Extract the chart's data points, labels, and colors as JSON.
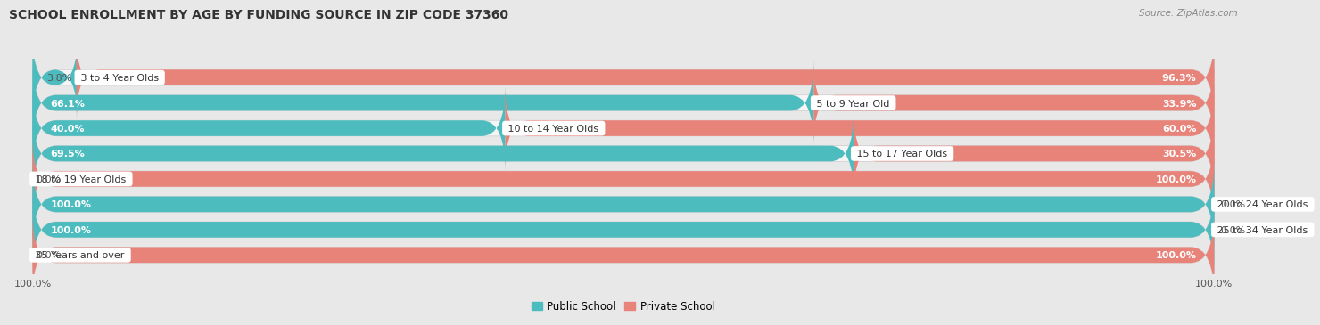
{
  "title": "SCHOOL ENROLLMENT BY AGE BY FUNDING SOURCE IN ZIP CODE 37360",
  "source": "Source: ZipAtlas.com",
  "categories": [
    "3 to 4 Year Olds",
    "5 to 9 Year Old",
    "10 to 14 Year Olds",
    "15 to 17 Year Olds",
    "18 to 19 Year Olds",
    "20 to 24 Year Olds",
    "25 to 34 Year Olds",
    "35 Years and over"
  ],
  "public_values": [
    3.8,
    66.1,
    40.0,
    69.5,
    0.0,
    100.0,
    100.0,
    0.0
  ],
  "private_values": [
    96.3,
    33.9,
    60.0,
    30.5,
    100.0,
    0.0,
    0.0,
    100.0
  ],
  "public_color": "#4CBCBF",
  "private_color": "#E8837A",
  "background_color": "#e8e8e8",
  "bar_bg_color": "#f5f5f5",
  "title_fontsize": 10,
  "label_fontsize": 8,
  "tick_fontsize": 8,
  "legend_public": "Public School",
  "legend_private": "Private School"
}
